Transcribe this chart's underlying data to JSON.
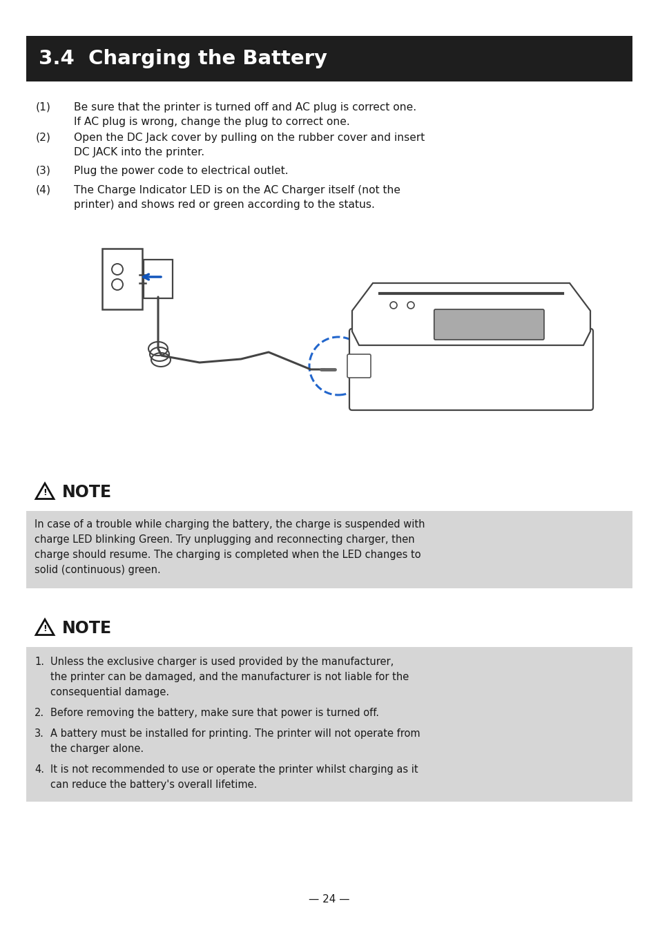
{
  "bg_color": "#ffffff",
  "header_bg": "#1e1e1e",
  "header_text": "3.4  Charging the Battery",
  "header_text_color": "#ffffff",
  "header_fontsize": 21,
  "body_text_color": "#1a1a1a",
  "note_bg": "#d6d6d6",
  "steps": [
    {
      "num": "(1)",
      "line1": "Be sure that the printer is turned off and AC plug is correct one.",
      "line2": "If AC plug is wrong, change the plug to correct one."
    },
    {
      "num": "(2)",
      "line1": "Open the DC Jack cover by pulling on the rubber cover and insert",
      "line2": "DC JACK into the printer."
    },
    {
      "num": "(3)",
      "line1": "Plug the power code to electrical outlet.",
      "line2": ""
    },
    {
      "num": "(4)",
      "line1": "The Charge Indicator LED is on the AC Charger itself (not the",
      "line2": "printer) and shows red or green according to the status."
    }
  ],
  "note1_title": "NOTE",
  "note1_lines": [
    "In case of a trouble while charging the battery, the charge is suspended with",
    "charge LED blinking Green. Try unplugging and reconnecting charger, then",
    "charge should resume. The charging is completed when the LED changes to",
    "solid (continuous) green."
  ],
  "note2_title": "NOTE",
  "note2_items": [
    [
      "Unless the exclusive charger is used provided by the manufacturer,",
      "the printer can be damaged, and the manufacturer is not liable for the",
      "consequential damage."
    ],
    [
      "Before removing the battery, make sure that power is turned off."
    ],
    [
      "A battery must be installed for printing. The printer will not operate from",
      "the charger alone."
    ],
    [
      "It is not recommended to use or operate the printer whilst charging as it",
      "can reduce the battery's overall lifetime."
    ]
  ],
  "page_number": "24",
  "fig_width": 9.54,
  "fig_height": 13.57,
  "dpi": 100
}
